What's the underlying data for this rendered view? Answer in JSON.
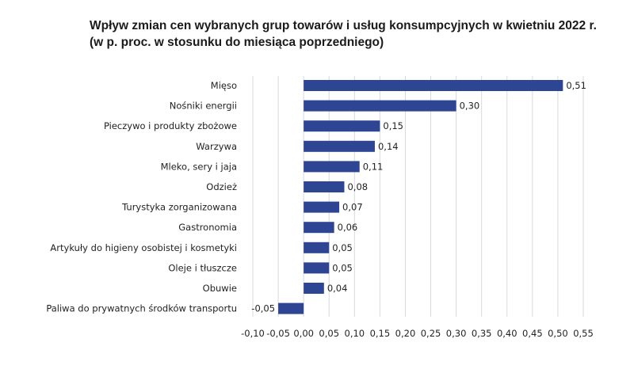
{
  "chart_data": {
    "type": "bar",
    "orientation": "horizontal",
    "title": "Wpływ zmian cen wybranych grup towarów i usług konsumpcyjnych w kwietniu 2022 r.",
    "subtitle": "(w p. proc. w stosunku do miesiąca poprzedniego)",
    "categories": [
      "Mięso",
      "Nośniki energii",
      "Pieczywo i produkty zbożowe",
      "Warzywa",
      "Mleko, sery i jaja",
      "Odzież",
      "Turystyka zorganizowana",
      "Gastronomia",
      "Artykuły do higieny osobistej i kosmetyki",
      "Oleje i tłuszcze",
      "Obuwie",
      "Paliwa do prywatnych środków transportu"
    ],
    "values": [
      0.51,
      0.3,
      0.15,
      0.14,
      0.11,
      0.08,
      0.07,
      0.06,
      0.05,
      0.05,
      0.04,
      -0.05
    ],
    "value_labels": [
      "0,51",
      "0,30",
      "0,15",
      "0,14",
      "0,11",
      "0,08",
      "0,07",
      "0,06",
      "0,05",
      "0,05",
      "0,04",
      "-0,05"
    ],
    "xlim": [
      -0.1,
      0.55
    ],
    "xticks": [
      -0.1,
      -0.05,
      0.0,
      0.05,
      0.1,
      0.15,
      0.2,
      0.25,
      0.3,
      0.35,
      0.4,
      0.45,
      0.5,
      0.55
    ],
    "xtick_labels": [
      "-0,10",
      "-0,05",
      "0,00",
      "0,05",
      "0,10",
      "0,15",
      "0,20",
      "0,25",
      "0,30",
      "0,35",
      "0,40",
      "0,45",
      "0,50",
      "0,55"
    ],
    "grid": "vertical",
    "legend": "none",
    "bar_color": "#2e4593",
    "grid_color": "#d9d9d9"
  }
}
